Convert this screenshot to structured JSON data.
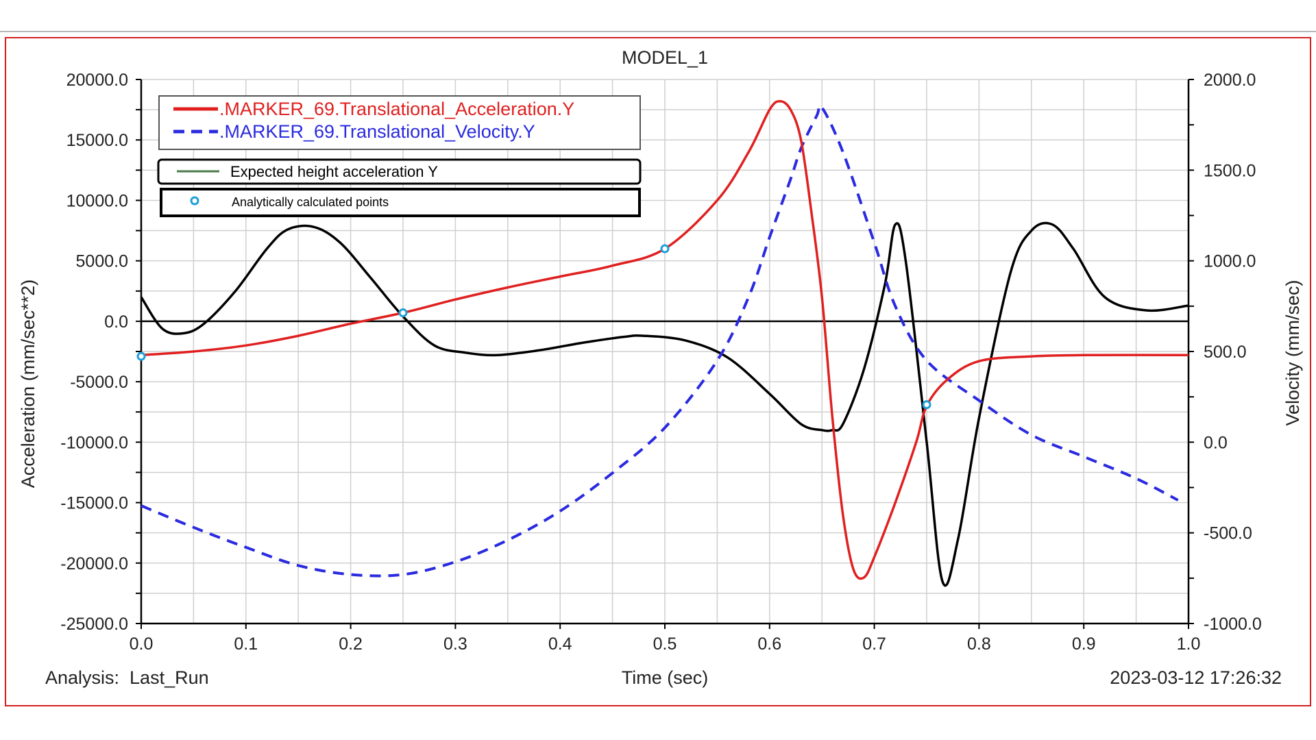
{
  "chart_data": {
    "type": "line",
    "title": "MODEL_1",
    "xlabel": "Time (sec)",
    "ylabel_left": "Acceleration (mm/sec**2)",
    "ylabel_right": "Velocity (mm/sec)",
    "xlim": [
      0,
      1
    ],
    "ylim_left": [
      -25000,
      20000
    ],
    "ylim_right": [
      -1000,
      2000
    ],
    "grid": true,
    "legend_position": "top-left",
    "x_ticks": [
      "0.0",
      "0.1",
      "0.2",
      "0.3",
      "0.4",
      "0.5",
      "0.6",
      "0.7",
      "0.8",
      "0.9",
      "1.0"
    ],
    "y_ticks_left": [
      "20000.0",
      "15000.0",
      "10000.0",
      "5000.0",
      "0.0",
      "-5000.0",
      "-10000.0",
      "-15000.0",
      "-20000.0",
      "-25000.0"
    ],
    "y_ticks_right": [
      "2000.0",
      "1500.0",
      "1000.0",
      "500.0",
      "0.0",
      "-500.0",
      "-1000.0"
    ],
    "footer_left": "Analysis:  Last_Run",
    "footer_right": "2023-03-12 17:26:32",
    "series": [
      {
        "name": ".MARKER_69.Translational_Acceleration.Y",
        "axis": "left",
        "color": "#e02020",
        "style": "solid",
        "x": [
          0,
          0.05,
          0.1,
          0.15,
          0.2,
          0.25,
          0.3,
          0.35,
          0.4,
          0.45,
          0.5,
          0.55,
          0.58,
          0.6,
          0.61,
          0.62,
          0.63,
          0.64,
          0.65,
          0.66,
          0.67,
          0.68,
          0.69,
          0.7,
          0.72,
          0.74,
          0.75,
          0.77,
          0.8,
          0.85,
          0.9,
          1.0
        ],
        "y": [
          -2800,
          -2500,
          -2000,
          -1200,
          -200,
          700,
          1800,
          2800,
          3700,
          4600,
          6000,
          10000,
          14000,
          17500,
          18200,
          17500,
          15000,
          9000,
          2000,
          -8000,
          -16000,
          -20500,
          -21200,
          -19500,
          -15000,
          -10000,
          -7000,
          -4800,
          -3300,
          -2900,
          -2800,
          -2800
        ]
      },
      {
        "name": ".MARKER_69.Translational_Velocity.Y",
        "axis": "right",
        "color": "#2a2ae0",
        "style": "dashed",
        "x": [
          0,
          0.05,
          0.1,
          0.15,
          0.2,
          0.25,
          0.3,
          0.35,
          0.4,
          0.45,
          0.5,
          0.55,
          0.58,
          0.6,
          0.62,
          0.63,
          0.645,
          0.65,
          0.67,
          0.7,
          0.72,
          0.75,
          0.8,
          0.85,
          0.9,
          0.95,
          0.99
        ],
        "y": [
          -350,
          -470,
          -580,
          -680,
          -730,
          -730,
          -660,
          -540,
          -380,
          -170,
          80,
          450,
          800,
          1130,
          1450,
          1620,
          1800,
          1845,
          1600,
          1100,
          750,
          450,
          230,
          40,
          -80,
          -200,
          -320
        ]
      },
      {
        "name": "Expected height acceleration Y",
        "axis": "left",
        "color": "#000000",
        "style": "solid",
        "legend_color": "#4a7a4a",
        "x": [
          0,
          0.02,
          0.04,
          0.06,
          0.09,
          0.12,
          0.14,
          0.165,
          0.19,
          0.22,
          0.25,
          0.28,
          0.31,
          0.34,
          0.38,
          0.42,
          0.46,
          0.48,
          0.52,
          0.56,
          0.6,
          0.63,
          0.65,
          0.66,
          0.67,
          0.69,
          0.71,
          0.72,
          0.73,
          0.75,
          0.765,
          0.78,
          0.8,
          0.83,
          0.85,
          0.87,
          0.89,
          0.92,
          0.96,
          1.0
        ],
        "y": [
          2000,
          -600,
          -1000,
          -200,
          2500,
          6000,
          7600,
          7800,
          6500,
          3500,
          400,
          -2000,
          -2600,
          -2800,
          -2400,
          -1800,
          -1300,
          -1200,
          -1600,
          -3000,
          -6000,
          -8500,
          -9000,
          -9000,
          -8500,
          -4000,
          3000,
          8000,
          5000,
          -10000,
          -21500,
          -18000,
          -8000,
          4000,
          7500,
          8000,
          6000,
          2000,
          900,
          1300
        ]
      },
      {
        "name": "Analytically calculated points",
        "axis": "left",
        "color": "#1f9ed8",
        "style": "markers",
        "x": [
          0,
          0.25,
          0.5,
          0.75
        ],
        "y": [
          -2900,
          700,
          6000,
          -6900
        ]
      }
    ]
  }
}
